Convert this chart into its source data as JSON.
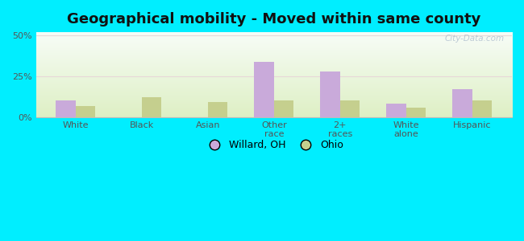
{
  "title": "Geographical mobility - Moved within same county",
  "categories": [
    "White",
    "Black",
    "Asian",
    "Other\nrace",
    "2+\nraces",
    "White\nalone",
    "Hispanic"
  ],
  "willard_values": [
    10,
    0,
    0,
    34,
    28,
    8,
    17
  ],
  "ohio_values": [
    7,
    12,
    9,
    10,
    10,
    6,
    10
  ],
  "bar_color_willard": "#c9aada",
  "bar_color_ohio": "#c5cf8e",
  "background_outer": "#00eeff",
  "yticks": [
    0,
    25,
    50
  ],
  "ylim": [
    0,
    52
  ],
  "bar_width": 0.3,
  "legend_labels": [
    "Willard, OH",
    "Ohio"
  ],
  "watermark": "City-Data.com",
  "title_fontsize": 13,
  "tick_fontsize": 8,
  "legend_fontsize": 9
}
